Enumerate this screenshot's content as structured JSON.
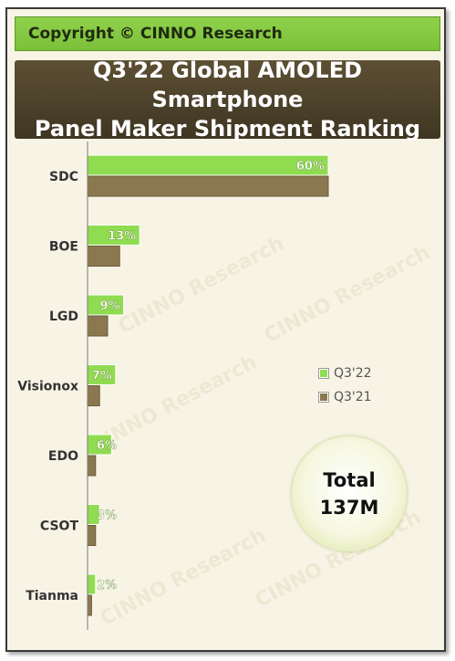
{
  "copyright": "Copyright © CINNO Research",
  "title_lines": [
    "Q3'22 Global AMOLED Smartphone",
    "Panel Maker Shipment Ranking"
  ],
  "watermark_text": "CINNO Research",
  "total": {
    "line1": "Total",
    "line2": "137M"
  },
  "colors": {
    "q3_22": "#90dc50",
    "q3_21": "#8c7850",
    "header": "#7cc03a"
  },
  "chart_data": {
    "type": "bar",
    "orientation": "horizontal",
    "title": "Q3'22 Global AMOLED Smartphone Panel Maker Shipment Ranking",
    "categories": [
      "SDC",
      "BOE",
      "LGD",
      "Visionox",
      "EDO",
      "CSOT",
      "Tianma"
    ],
    "series": [
      {
        "name": "Q3'22",
        "values": [
          60,
          13,
          9,
          7,
          6,
          3,
          2
        ],
        "labels": [
          "60%",
          "13%",
          "9%",
          "7%",
          "6%",
          "3%",
          "2%"
        ]
      },
      {
        "name": "Q3'21",
        "values": [
          60,
          8,
          5,
          3,
          2,
          2,
          1
        ]
      }
    ],
    "legend_position": "right",
    "grid": false
  }
}
